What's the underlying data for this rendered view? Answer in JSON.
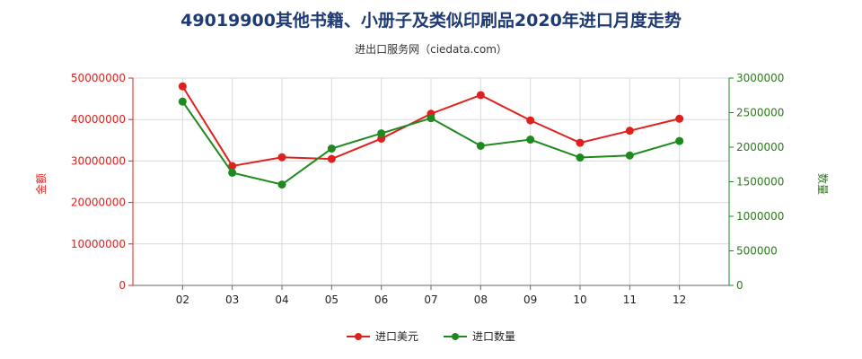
{
  "header": {
    "title": "49019900其他书籍、小册子及类似印刷品2020年进口月度走势",
    "subtitle": "进出口服务网（ciedata.com）"
  },
  "colors": {
    "series1": "#e0201c",
    "series2": "#1e8a1e",
    "grid": "#d9d9d9"
  },
  "chart_data": {
    "type": "line",
    "categories": [
      "02",
      "03",
      "04",
      "05",
      "06",
      "07",
      "08",
      "09",
      "10",
      "11",
      "12"
    ],
    "series": [
      {
        "name": "进口美元",
        "axis": "left",
        "values": [
          48000000,
          28800000,
          30900000,
          30500000,
          35400000,
          41400000,
          45900000,
          39800000,
          34400000,
          37300000,
          40200000
        ]
      },
      {
        "name": "进口数量",
        "axis": "right",
        "values": [
          2660000,
          1630000,
          1460000,
          1980000,
          2200000,
          2420000,
          2020000,
          2110000,
          1850000,
          1880000,
          2090000
        ]
      }
    ],
    "ylim_left": [
      0,
      50000000
    ],
    "yticks_left": [
      "0",
      "10000000",
      "20000000",
      "30000000",
      "40000000",
      "50000000"
    ],
    "ylabel_left": "金额",
    "ylim_right": [
      0,
      3000000
    ],
    "yticks_right": [
      "0",
      "500000",
      "1000000",
      "1500000",
      "2000000",
      "2500000",
      "3000000"
    ],
    "ylabel_right": "数量",
    "grid": true,
    "legend_position": "bottom"
  }
}
